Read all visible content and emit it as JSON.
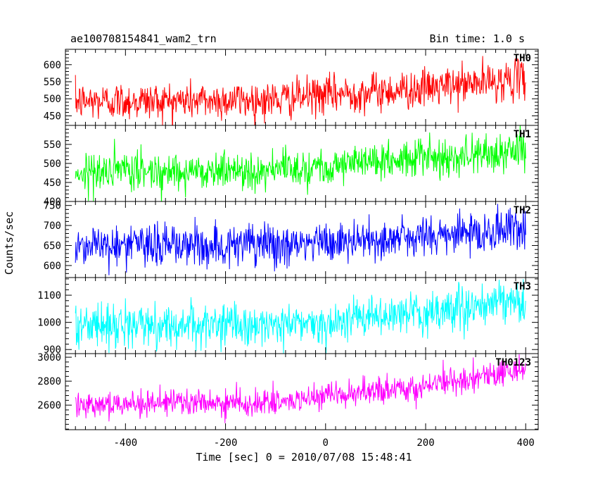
{
  "header": {
    "left_title": "ae100708154841_wam2_trn",
    "right_title": "Bin time: 1.0 s"
  },
  "chart_data": {
    "type": "line",
    "xlabel": "Time [sec] 0 = 2010/07/08 15:48:41",
    "ylabel": "Counts/sec",
    "xlim": [
      -520,
      425
    ],
    "x_ticks": [
      -400,
      -200,
      0,
      200,
      400
    ],
    "x_range": [
      -500,
      400
    ],
    "bin_seconds": 1.0,
    "panels": [
      {
        "name": "TH0",
        "color": "#ff0000",
        "ylim": [
          422,
          645
        ],
        "y_ticks": [
          450,
          500,
          550,
          600
        ],
        "trend": [
          [
            -500,
            492
          ],
          [
            -100,
            497
          ],
          [
            0,
            512
          ],
          [
            200,
            530
          ],
          [
            400,
            560
          ]
        ],
        "noise": 28
      },
      {
        "name": "TH1",
        "color": "#00ff00",
        "ylim": [
          400,
          600
        ],
        "y_ticks": [
          400,
          450,
          500,
          550
        ],
        "trend": [
          [
            -500,
            477
          ],
          [
            -100,
            483
          ],
          [
            0,
            495
          ],
          [
            200,
            515
          ],
          [
            400,
            532
          ]
        ],
        "noise": 25
      },
      {
        "name": "TH2",
        "color": "#0000ff",
        "ylim": [
          570,
          760
        ],
        "y_ticks": [
          600,
          650,
          700,
          750
        ],
        "trend": [
          [
            -500,
            652
          ],
          [
            -100,
            650
          ],
          [
            0,
            656
          ],
          [
            200,
            672
          ],
          [
            400,
            693
          ]
        ],
        "noise": 27
      },
      {
        "name": "TH3",
        "color": "#00ffff",
        "ylim": [
          885,
          1165
        ],
        "y_ticks": [
          900,
          1000,
          1100
        ],
        "trend": [
          [
            -500,
            990
          ],
          [
            -100,
            990
          ],
          [
            0,
            1002
          ],
          [
            200,
            1035
          ],
          [
            400,
            1078
          ]
        ],
        "noise": 38
      },
      {
        "name": "TH0123",
        "color": "#ff00ff",
        "ylim": [
          2395,
          3030
        ],
        "y_ticks": [
          2600,
          2800,
          3000
        ],
        "trend": [
          [
            -500,
            2615
          ],
          [
            -100,
            2618
          ],
          [
            0,
            2665
          ],
          [
            200,
            2760
          ],
          [
            400,
            2905
          ]
        ],
        "noise": 55
      }
    ]
  }
}
